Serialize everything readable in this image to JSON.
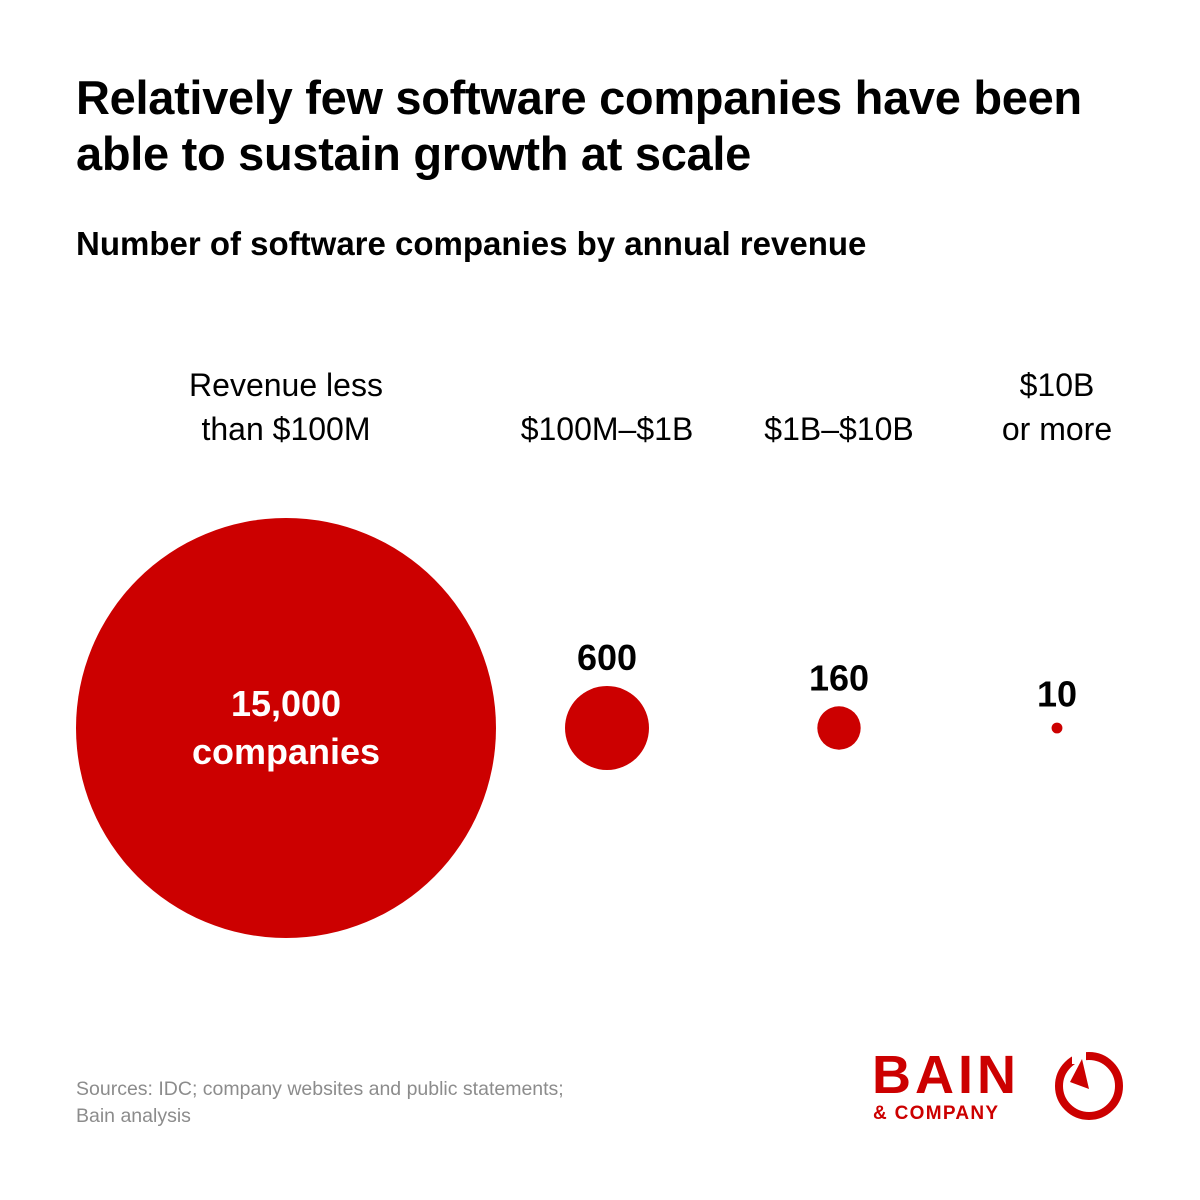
{
  "title": "Relatively few software companies have been able to sustain growth at scale",
  "subtitle": "Number of software companies by annual revenue",
  "chart_data": {
    "type": "bubble",
    "title": "Relatively few software companies have been able to sustain growth at scale",
    "subtitle": "Number of software companies by annual revenue",
    "categories": [
      [
        "Revenue less",
        "than $100M"
      ],
      [
        "$100M–$1B"
      ],
      [
        "$1B–$10B"
      ],
      [
        "$10B",
        "or more"
      ]
    ],
    "values": [
      15000,
      600,
      160,
      10
    ],
    "value_labels": [
      [
        "15,000",
        "companies"
      ],
      [
        "600"
      ],
      [
        "160"
      ],
      [
        "10"
      ]
    ],
    "color": "#cc0000",
    "encoding": "area"
  },
  "sources": {
    "lines": [
      "Sources: IDC; company websites and public statements;",
      "Bain analysis"
    ]
  },
  "logo": {
    "word": "BAIN",
    "sub": "& COMPANY",
    "color": "#cc0000"
  }
}
